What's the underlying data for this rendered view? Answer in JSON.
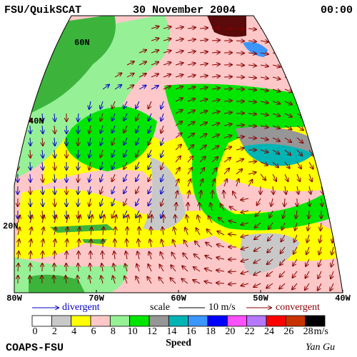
{
  "header": {
    "product": "FSU/QuikSCAT",
    "date": "30 November 2004",
    "time": "00:00"
  },
  "map": {
    "lat_labels": [
      "60N",
      "40N",
      "20N"
    ],
    "lon_labels": [
      "80W",
      "70W",
      "60W",
      "50W",
      "40W"
    ]
  },
  "legend": {
    "divergent": "divergent",
    "scale": "scale",
    "scale_value": "10 m/s",
    "convergent": "convergent"
  },
  "colorbar": {
    "labels": [
      "0",
      "2",
      "4",
      "6",
      "8",
      "10",
      "12",
      "14",
      "16",
      "18",
      "20",
      "22",
      "24",
      "26",
      "28"
    ],
    "unit": "m/s",
    "title": "Speed",
    "colors": [
      "#ffffff",
      "#c8c8c8",
      "#ffff00",
      "#ffc8c8",
      "#96f096",
      "#00e600",
      "#969696",
      "#00b4b4",
      "#3c96ff",
      "#0000ff",
      "#ff50ff",
      "#b478ff",
      "#ff0000",
      "#c83200",
      "#000000"
    ]
  },
  "footer": {
    "institution": "COAPS-FSU",
    "author": "Yan Gu"
  }
}
